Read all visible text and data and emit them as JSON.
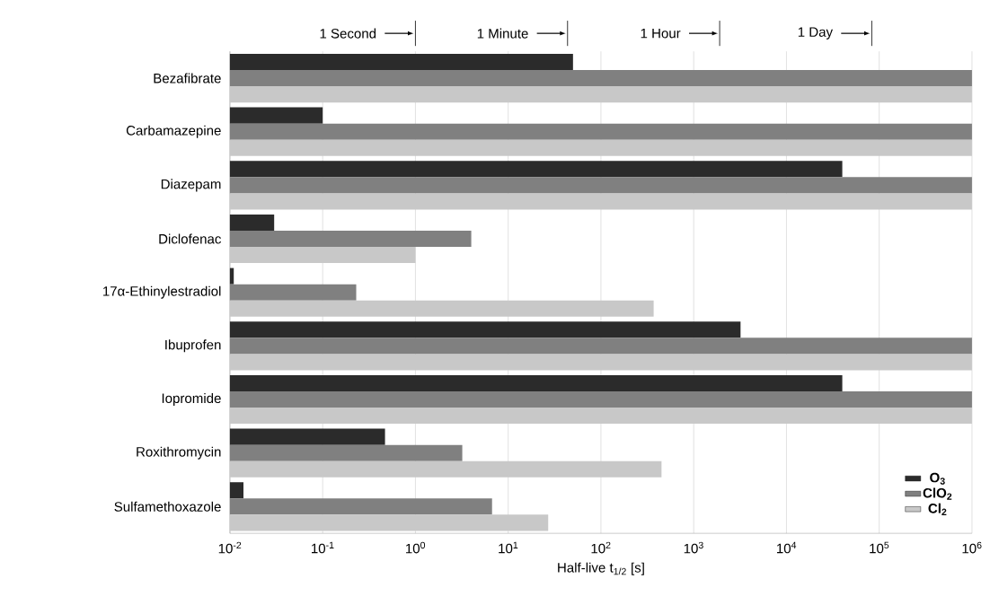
{
  "chart_data": {
    "type": "bar",
    "orientation": "horizontal",
    "log": "x",
    "xlabel": "Half-live t$_{1/2}$ [s]",
    "categories": [
      "Bezafibrate",
      "Carbamazepine",
      "Diazepam",
      "Diclofenac",
      "17α-Ethinylestradiol",
      "Ibuprofen",
      "Iopromide",
      "Roxithromycin",
      "Sulfamethoxazole"
    ],
    "series": [
      {
        "name": "O$_{3}$",
        "color": "#2b2b2b",
        "values": [
          50,
          0.1,
          40000,
          0.03,
          0.011,
          3200,
          40000,
          0.47,
          0.014
        ]
      },
      {
        "name": "ClO$_{2}$",
        "color": "#808080",
        "values": [
          1000000,
          1000000,
          1000000,
          4,
          0.23,
          1000000,
          1000000,
          3.2,
          6.7
        ]
      },
      {
        "name": "Cl$_{2}$",
        "color": "#c8c8c8",
        "values": [
          1000000,
          1000000,
          1000000,
          1,
          370,
          1000000,
          1000000,
          450,
          27
        ]
      }
    ],
    "xlim": [
      0.01,
      1000000
    ],
    "xticks": [
      {
        "value": 0.01,
        "label": "10$^{-2}$"
      },
      {
        "value": 0.1,
        "label": "10$^{-1}$"
      },
      {
        "value": 1,
        "label": "10$^{0}$"
      },
      {
        "value": 10,
        "label": "10$^{1}$"
      },
      {
        "value": 100,
        "label": "10$^{2}$"
      },
      {
        "value": 1000,
        "label": "10$^{3}$"
      },
      {
        "value": 10000,
        "label": "10$^{4}$"
      },
      {
        "value": 100000,
        "label": "10$^{5}$"
      },
      {
        "value": 1000000,
        "label": "10$^{6}$"
      }
    ],
    "annotations": [
      "1 Second",
      "1 Minute",
      "1 Hour",
      "1 Day"
    ],
    "grid": "x",
    "legend": "bottom right"
  }
}
